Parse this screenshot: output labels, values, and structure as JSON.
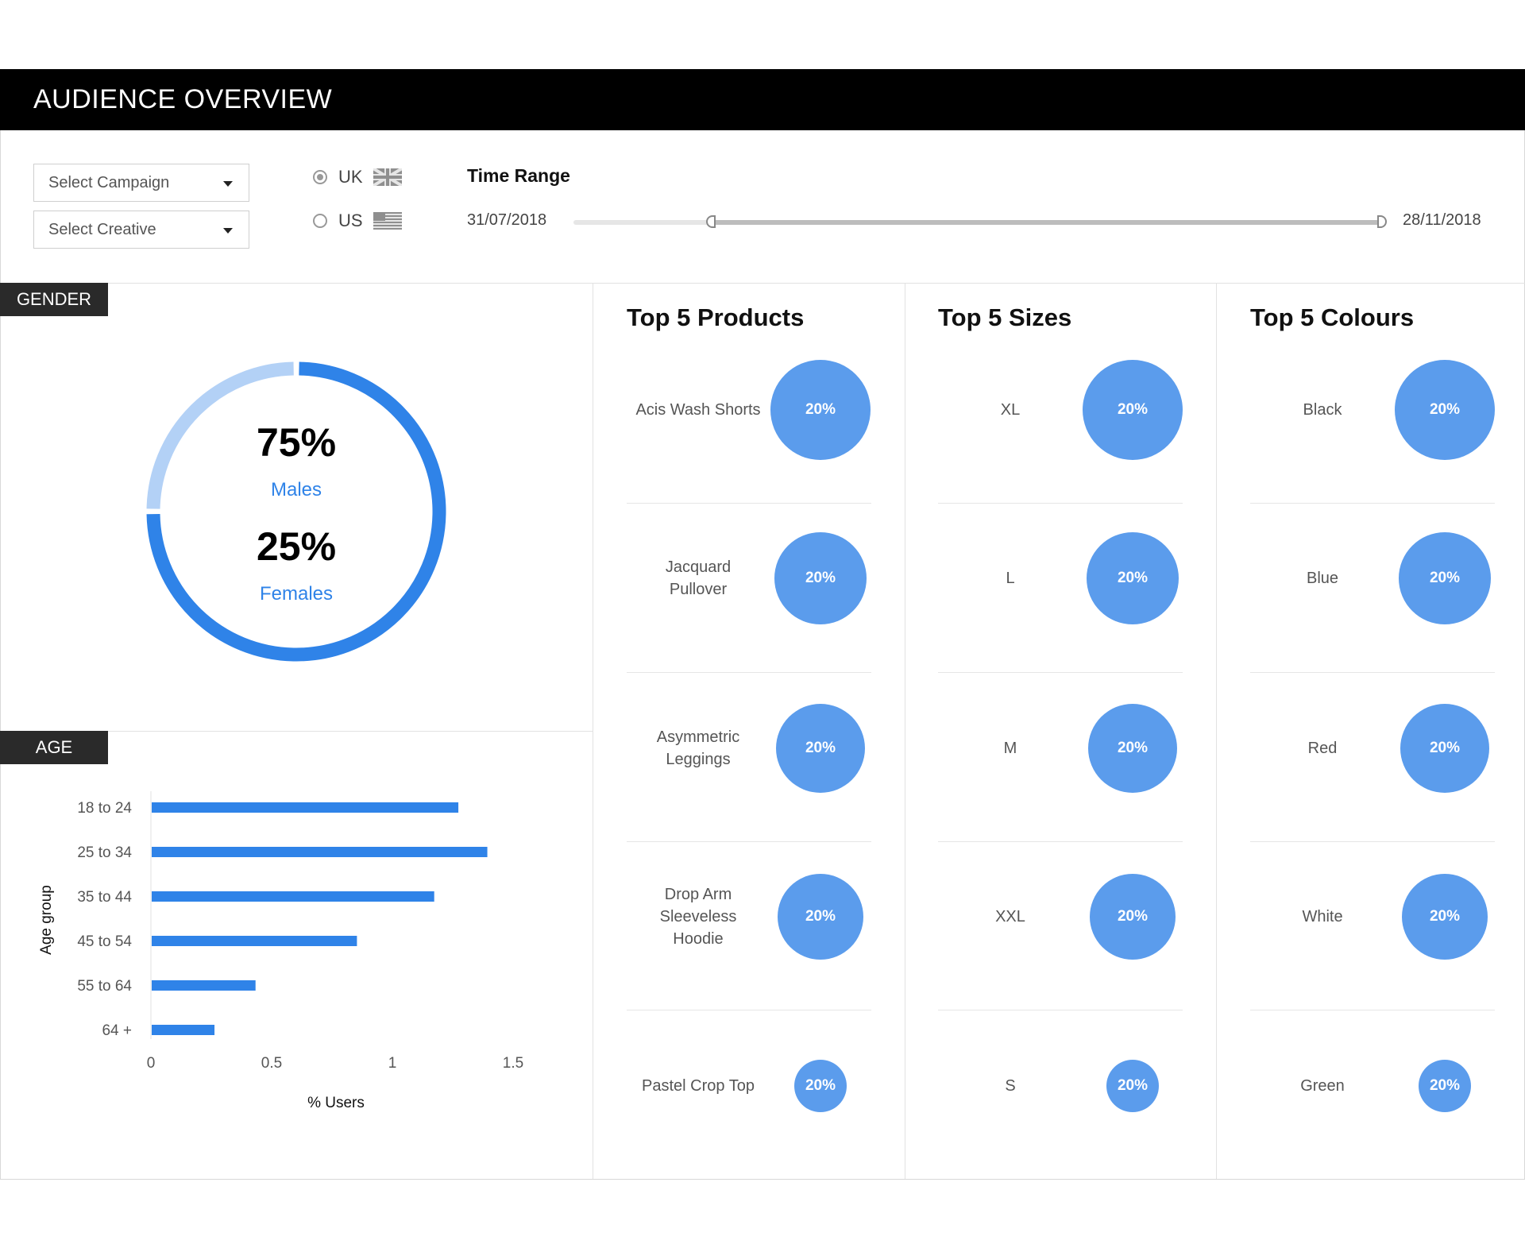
{
  "header": {
    "title": "AUDIENCE OVERVIEW"
  },
  "filters": {
    "campaign_placeholder": "Select Campaign",
    "creative_placeholder": "Select Creative",
    "regions": [
      {
        "label": "UK",
        "selected": true,
        "flag": "uk-flag-icon"
      },
      {
        "label": "US",
        "selected": false,
        "flag": "us-flag-icon"
      }
    ],
    "time_range": {
      "title": "Time Range",
      "start": "31/07/2018",
      "end": "28/11/2018",
      "selection_start": 0.17,
      "selection_end": 1.0
    }
  },
  "gender": {
    "tag": "GENDER",
    "male_pct": "75%",
    "male_label": "Males",
    "female_pct": "25%",
    "female_label": "Females",
    "colors": {
      "male": "#2f83e8",
      "female": "#b3d1f6"
    }
  },
  "age": {
    "tag": "AGE",
    "chart_data": {
      "type": "bar",
      "orientation": "horizontal",
      "categories": [
        "18 to 24",
        "25 to 34",
        "35 to 44",
        "45 to 54",
        "55 to 64",
        "64 +"
      ],
      "values": [
        1.27,
        1.39,
        1.17,
        0.85,
        0.43,
        0.26
      ],
      "xlabel": "% Users",
      "ylabel": "Age group",
      "xticks": [
        "0",
        "0.5",
        "1",
        "1.5"
      ],
      "xlim": [
        0,
        1.5
      ],
      "color": "#2f83e8",
      "grid": false
    }
  },
  "products": {
    "title": "Top 5 Products",
    "items": [
      {
        "label": "Acis Wash Shorts",
        "value": "20%"
      },
      {
        "label": "Jacquard Pullover",
        "value": "20%"
      },
      {
        "label": "Asymmetric Leggings",
        "value": "20%"
      },
      {
        "label": "Drop Arm Sleeveless Hoodie",
        "value": "20%"
      },
      {
        "label": "Pastel Crop Top",
        "value": "20%"
      }
    ]
  },
  "sizes": {
    "title": "Top 5 Sizes",
    "items": [
      {
        "label": "XL",
        "value": "20%"
      },
      {
        "label": "L",
        "value": "20%"
      },
      {
        "label": "M",
        "value": "20%"
      },
      {
        "label": "XXL",
        "value": "20%"
      },
      {
        "label": "S",
        "value": "20%"
      }
    ]
  },
  "colours": {
    "title": "Top 5 Colours",
    "items": [
      {
        "label": "Black",
        "value": "20%"
      },
      {
        "label": "Blue",
        "value": "20%"
      },
      {
        "label": "Red",
        "value": "20%"
      },
      {
        "label": "White",
        "value": "20%"
      },
      {
        "label": "Green",
        "value": "20%"
      }
    ]
  },
  "accent_color": "#5b9cec"
}
